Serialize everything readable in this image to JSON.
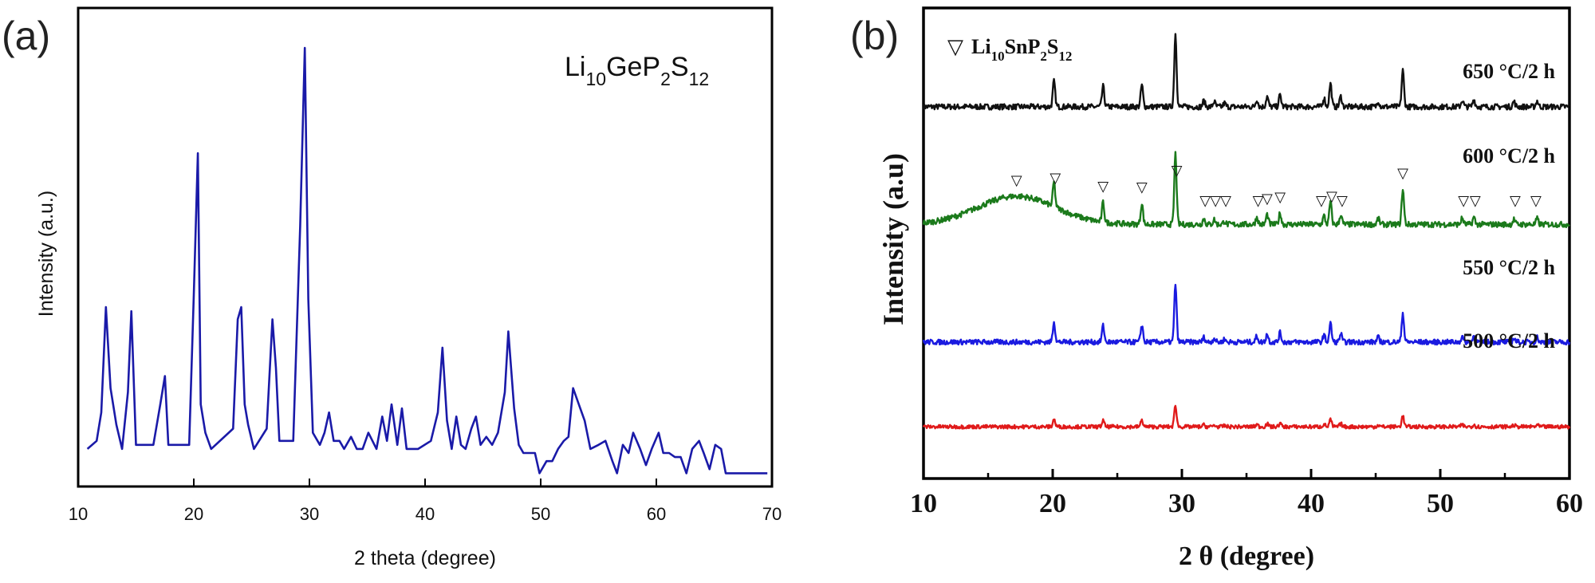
{
  "chart_data": [
    {
      "id": "a",
      "type": "line",
      "panel_label": "(a)",
      "annotation": {
        "base": "Li",
        "sub1": "10",
        "mid": "GeP",
        "sub2": "2",
        "end": "S",
        "sub3": "12"
      },
      "xlabel": "2 theta (degree)",
      "ylabel": "Intensity (a.u.)",
      "xlim": [
        10,
        70
      ],
      "ylim": [
        0,
        1
      ],
      "xticks": [
        10,
        20,
        30,
        40,
        50,
        60,
        70
      ],
      "color": "#1a1aa8",
      "series": [
        {
          "name": "Li10GeP2S12",
          "x": [
            10.8,
            11.6,
            12.0,
            12.4,
            12.8,
            13.3,
            13.8,
            14.3,
            14.6,
            15.0,
            16.5,
            17.1,
            17.5,
            17.8,
            19.6,
            20.0,
            20.35,
            20.6,
            21.0,
            21.5,
            23.4,
            23.8,
            24.1,
            24.4,
            24.7,
            25.2,
            26.3,
            26.8,
            27.1,
            27.4,
            28.6,
            29.2,
            29.6,
            29.9,
            30.3,
            30.9,
            31.3,
            31.7,
            32.1,
            32.6,
            33.0,
            33.6,
            34.1,
            34.6,
            35.1,
            35.8,
            36.3,
            36.7,
            37.1,
            37.6,
            38.0,
            38.4,
            39.4,
            40.5,
            41.1,
            41.5,
            41.9,
            42.3,
            42.7,
            43.1,
            43.5,
            44.0,
            44.4,
            44.8,
            45.3,
            45.8,
            46.3,
            46.9,
            47.2,
            47.7,
            48.1,
            48.5,
            49.0,
            49.5,
            49.9,
            50.5,
            51.0,
            51.5,
            52.0,
            52.4,
            52.8,
            53.3,
            53.8,
            54.3,
            55.0,
            55.6,
            56.2,
            56.6,
            57.1,
            57.6,
            58.0,
            58.6,
            59.1,
            59.6,
            60.2,
            60.6,
            61.1,
            61.6,
            62.1,
            62.6,
            63.1,
            63.7,
            64.1,
            64.6,
            65.1,
            65.6,
            66.0,
            66.5,
            67.0,
            67.5,
            68.0,
            68.5,
            69.0,
            69.6
          ],
          "y": [
            0.01,
            0.03,
            0.1,
            0.36,
            0.16,
            0.07,
            0.01,
            0.15,
            0.35,
            0.02,
            0.02,
            0.12,
            0.19,
            0.02,
            0.02,
            0.39,
            0.74,
            0.12,
            0.05,
            0.01,
            0.06,
            0.33,
            0.36,
            0.12,
            0.07,
            0.01,
            0.06,
            0.33,
            0.21,
            0.03,
            0.03,
            0.56,
            1.0,
            0.38,
            0.05,
            0.02,
            0.05,
            0.1,
            0.03,
            0.03,
            0.01,
            0.04,
            0.01,
            0.01,
            0.05,
            0.01,
            0.09,
            0.03,
            0.12,
            0.02,
            0.11,
            0.01,
            0.01,
            0.03,
            0.1,
            0.26,
            0.08,
            0.01,
            0.09,
            0.02,
            0.01,
            0.06,
            0.09,
            0.02,
            0.04,
            0.02,
            0.05,
            0.15,
            0.3,
            0.11,
            0.02,
            0.0,
            0.0,
            0.0,
            -0.05,
            -0.02,
            -0.02,
            0.01,
            0.03,
            0.04,
            0.16,
            0.12,
            0.08,
            0.01,
            0.02,
            0.03,
            -0.02,
            -0.05,
            0.02,
            0.0,
            0.05,
            0.01,
            -0.03,
            0.01,
            0.05,
            0.0,
            0.0,
            -0.01,
            -0.01,
            -0.05,
            0.01,
            0.03,
            0.0,
            -0.04,
            0.02,
            0.01,
            -0.05,
            -0.05,
            -0.05,
            -0.05,
            -0.05,
            -0.05,
            -0.05,
            -0.05
          ]
        }
      ]
    },
    {
      "id": "b",
      "type": "line",
      "panel_label": "(b)",
      "legend": {
        "marker": "▽",
        "base": "Li",
        "sub1": "10",
        "mid": "SnP",
        "sub2": "2",
        "end": "S",
        "sub3": "12"
      },
      "xlabel": "2 θ (degree)",
      "ylabel": "Intensity (a.u)",
      "xlim": [
        10,
        60
      ],
      "xticks": [
        10,
        20,
        30,
        40,
        50,
        60
      ],
      "common_peaks": [
        {
          "x": 20.1,
          "h": 0.35
        },
        {
          "x": 23.9,
          "h": 0.28
        },
        {
          "x": 26.9,
          "h": 0.3
        },
        {
          "x": 29.5,
          "h": 1.0
        },
        {
          "x": 31.7,
          "h": 0.08
        },
        {
          "x": 32.5,
          "h": 0.07
        },
        {
          "x": 33.3,
          "h": 0.05
        },
        {
          "x": 35.8,
          "h": 0.1
        },
        {
          "x": 36.6,
          "h": 0.14
        },
        {
          "x": 37.6,
          "h": 0.16
        },
        {
          "x": 41.0,
          "h": 0.12
        },
        {
          "x": 41.5,
          "h": 0.32
        },
        {
          "x": 42.3,
          "h": 0.14
        },
        {
          "x": 45.2,
          "h": 0.08
        },
        {
          "x": 47.1,
          "h": 0.5
        },
        {
          "x": 51.7,
          "h": 0.09
        },
        {
          "x": 52.6,
          "h": 0.1
        },
        {
          "x": 55.7,
          "h": 0.07
        },
        {
          "x": 57.5,
          "h": 0.08
        }
      ],
      "series": [
        {
          "name": "650 °C/2 h",
          "label": "650 °C/2 h",
          "color": "#111111",
          "baseline_offset": 0.79,
          "peak_scale": 1.0,
          "noise": 0.012
        },
        {
          "name": "600 °C/2 h",
          "label": "600 °C/2 h",
          "color": "#1b7a1b",
          "baseline_offset": 0.54,
          "peak_scale": 0.97,
          "noise": 0.012,
          "hump": {
            "x": 17.2,
            "h": 0.06,
            "w": 3.0
          }
        },
        {
          "name": "550 °C/2 h",
          "label": "550 °C/2 h",
          "color": "#1a1ae0",
          "baseline_offset": 0.29,
          "peak_scale": 0.8,
          "noise": 0.011
        },
        {
          "name": "500 °C/2 h",
          "label": "500 °C/2 h",
          "color": "#e01a1a",
          "baseline_offset": 0.11,
          "peak_scale": 0.3,
          "noise": 0.008
        }
      ],
      "triangle_markers": {
        "series": "600 °C/2 h",
        "symbol": "▽",
        "x": [
          17.2,
          20.2,
          23.9,
          26.9,
          29.6,
          31.8,
          32.6,
          33.4,
          35.9,
          36.6,
          37.6,
          40.8,
          41.6,
          42.4,
          47.1,
          51.8,
          52.7,
          55.8,
          57.4
        ]
      }
    }
  ]
}
